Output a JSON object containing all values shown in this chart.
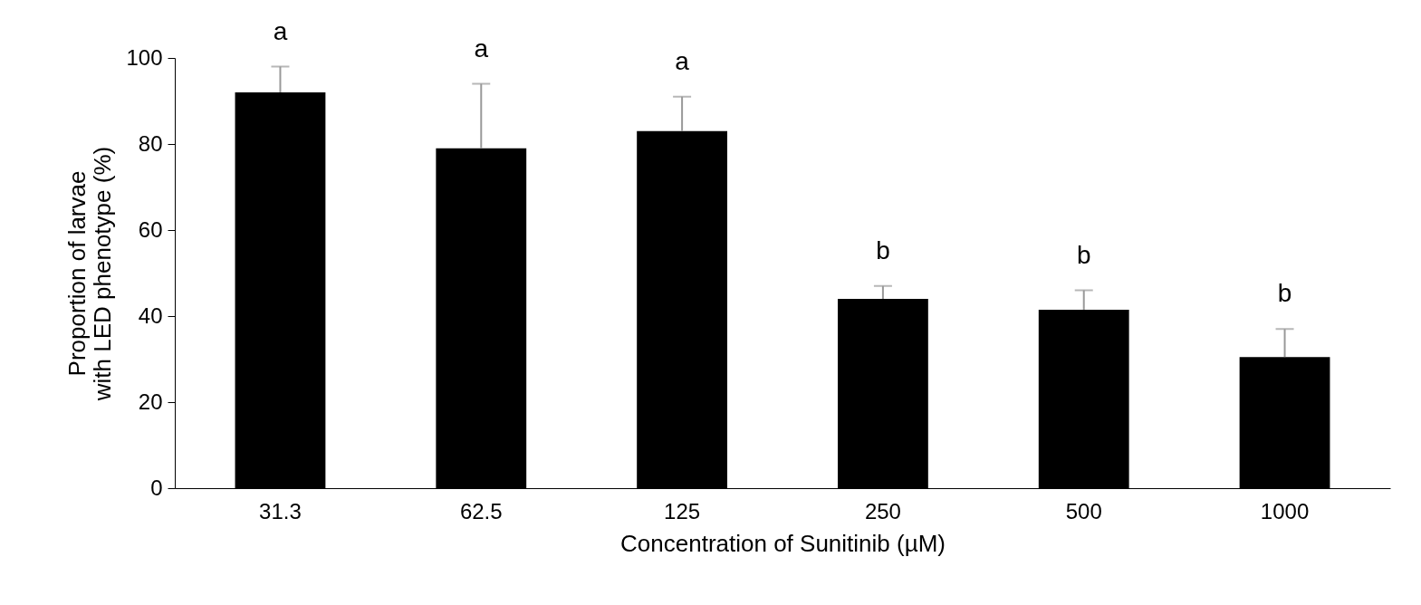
{
  "chart_data": {
    "type": "bar",
    "xlabel": "Concentration of Sunitinib (µM)",
    "ylabel": "Proportion of larvae\nwith LED phenotype (%)",
    "categories": [
      "31.3",
      "62.5",
      "125",
      "250",
      "500",
      "1000"
    ],
    "values": [
      92,
      79,
      83,
      44,
      41.5,
      30.5
    ],
    "errors": [
      [
        92,
        98
      ],
      [
        79,
        94
      ],
      [
        83,
        91
      ],
      [
        44,
        47
      ],
      [
        41.5,
        46
      ],
      [
        30.5,
        37
      ]
    ],
    "color": "#000000",
    "ylim": [
      0,
      100
    ],
    "yticks": [
      0,
      20,
      40,
      60,
      80,
      100
    ],
    "grid": false,
    "annotations": [
      "a",
      "a",
      "a",
      "b",
      "b",
      "b"
    ]
  }
}
